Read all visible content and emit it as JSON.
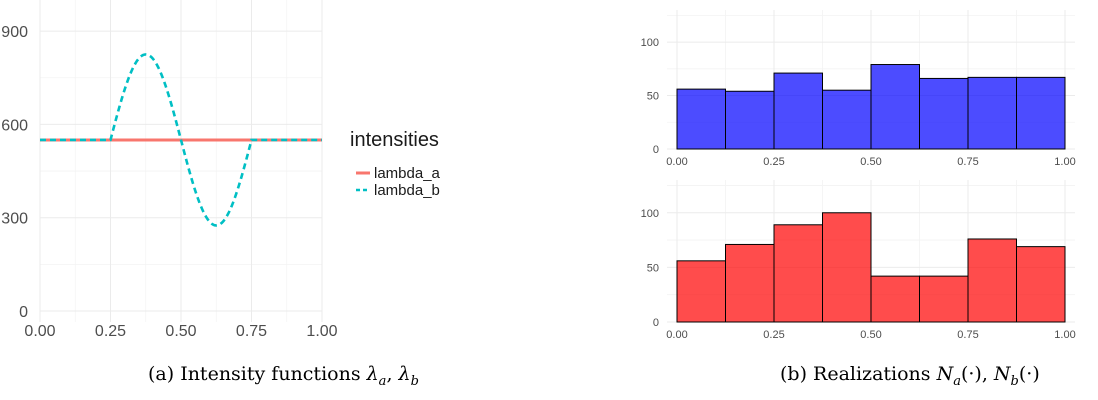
{
  "chart_data": [
    {
      "type": "line",
      "xlim": [
        0,
        1
      ],
      "ylim": [
        0,
        1000
      ],
      "x_ticks": [
        "0.00",
        "0.25",
        "0.50",
        "0.75",
        "1.00"
      ],
      "y_ticks": [
        "0",
        "300",
        "600",
        "900"
      ],
      "grid": true,
      "legend_position": "right",
      "legend_title": "intensities",
      "series": [
        {
          "name": "lambda_a",
          "color": "#F8766D",
          "style": "solid",
          "x": [
            0,
            1
          ],
          "y": [
            550,
            550
          ]
        },
        {
          "name": "lambda_b",
          "color": "#00BFC4",
          "style": "dashed",
          "x": [
            0,
            0.25,
            0.3125,
            0.375,
            0.4375,
            0.5,
            0.5625,
            0.625,
            0.6875,
            0.75,
            1
          ],
          "y": [
            550,
            550,
            744,
            825,
            744,
            550,
            356,
            275,
            356,
            550,
            550
          ]
        }
      ],
      "caption_prefix": "(a) Intensity functions ",
      "caption_math": "λa, λb"
    },
    {
      "type": "bar",
      "subtype": "histogram",
      "color": "#0000FF",
      "bin_edges": [
        0,
        0.125,
        0.25,
        0.375,
        0.5,
        0.625,
        0.75,
        0.875,
        1.0
      ],
      "values": [
        56,
        54,
        71,
        55,
        79,
        66,
        67,
        67
      ],
      "ylim": [
        0,
        130
      ],
      "x_ticks": [
        "0.00",
        "0.25",
        "0.50",
        "0.75",
        "1.00"
      ],
      "y_ticks": [
        "0",
        "50",
        "100"
      ],
      "grid": true
    },
    {
      "type": "bar",
      "subtype": "histogram",
      "color": "#FF0000",
      "bin_edges": [
        0,
        0.125,
        0.25,
        0.375,
        0.5,
        0.625,
        0.75,
        0.875,
        1.0
      ],
      "values": [
        56,
        71,
        89,
        100,
        42,
        42,
        76,
        69
      ],
      "ylim": [
        0,
        130
      ],
      "x_ticks": [
        "0.00",
        "0.25",
        "0.50",
        "0.75",
        "1.00"
      ],
      "y_ticks": [
        "0",
        "50",
        "100"
      ],
      "grid": true,
      "caption_prefix": "(b) Realizations ",
      "caption_math": "Na(·), Nb(·)"
    }
  ]
}
